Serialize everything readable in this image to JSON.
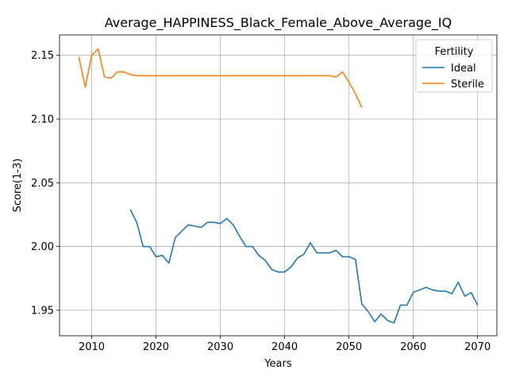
{
  "chart_data": {
    "type": "line",
    "title": "Average_HAPPINESS_Black_Female_Above_Average_IQ",
    "xlabel": "Years",
    "ylabel": "Score(1-3)",
    "xlim": [
      2005,
      2073
    ],
    "ylim": [
      1.93,
      2.166
    ],
    "x_ticks": [
      2010,
      2020,
      2030,
      2040,
      2050,
      2060,
      2070
    ],
    "y_ticks": [
      1.95,
      2.0,
      2.05,
      2.1,
      2.15
    ],
    "x_tick_labels": [
      "2010",
      "2020",
      "2030",
      "2040",
      "2050",
      "2060",
      "2070"
    ],
    "y_tick_labels": [
      "1.95",
      "2.00",
      "2.05",
      "2.10",
      "2.15"
    ],
    "grid": true,
    "legend": {
      "title": "Fertility",
      "placement": "top-right"
    },
    "series": [
      {
        "name": "Ideal",
        "color": "#1f77b4",
        "points": [
          [
            2016,
            2.029
          ],
          [
            2017,
            2.019
          ],
          [
            2018,
            2.0
          ],
          [
            2019,
            2.0
          ],
          [
            2020,
            1.992
          ],
          [
            2021,
            1.993
          ],
          [
            2022,
            1.987
          ],
          [
            2023,
            2.007
          ],
          [
            2024,
            2.012
          ],
          [
            2025,
            2.017
          ],
          [
            2026,
            2.016
          ],
          [
            2027,
            2.015
          ],
          [
            2028,
            2.019
          ],
          [
            2029,
            2.019
          ],
          [
            2030,
            2.018
          ],
          [
            2031,
            2.022
          ],
          [
            2032,
            2.017
          ],
          [
            2033,
            2.008
          ],
          [
            2034,
            2.0
          ],
          [
            2035,
            2.0
          ],
          [
            2036,
            1.993
          ],
          [
            2037,
            1.989
          ],
          [
            2038,
            1.982
          ],
          [
            2039,
            1.98
          ],
          [
            2040,
            1.98
          ],
          [
            2041,
            1.984
          ],
          [
            2042,
            1.991
          ],
          [
            2043,
            1.994
          ],
          [
            2044,
            2.003
          ],
          [
            2045,
            1.995
          ],
          [
            2046,
            1.995
          ],
          [
            2047,
            1.995
          ],
          [
            2048,
            1.997
          ],
          [
            2049,
            1.992
          ],
          [
            2050,
            1.992
          ],
          [
            2051,
            1.99
          ],
          [
            2052,
            1.955
          ],
          [
            2053,
            1.949
          ],
          [
            2054,
            1.941
          ],
          [
            2055,
            1.947
          ],
          [
            2056,
            1.942
          ],
          [
            2057,
            1.94
          ],
          [
            2058,
            1.954
          ],
          [
            2059,
            1.954
          ],
          [
            2060,
            1.964
          ],
          [
            2061,
            1.966
          ],
          [
            2062,
            1.968
          ],
          [
            2063,
            1.966
          ],
          [
            2064,
            1.965
          ],
          [
            2065,
            1.965
          ],
          [
            2066,
            1.963
          ],
          [
            2067,
            1.972
          ],
          [
            2068,
            1.961
          ],
          [
            2069,
            1.964
          ],
          [
            2070,
            1.954
          ]
        ]
      },
      {
        "name": "Sterile",
        "color": "#ff7f0e",
        "points": [
          [
            2008,
            2.149
          ],
          [
            2009,
            2.125
          ],
          [
            2010,
            2.15
          ],
          [
            2011,
            2.155
          ],
          [
            2012,
            2.133
          ],
          [
            2013,
            2.132
          ],
          [
            2014,
            2.137
          ],
          [
            2015,
            2.137
          ],
          [
            2016,
            2.135
          ],
          [
            2017,
            2.134
          ],
          [
            2018,
            2.134
          ],
          [
            2019,
            2.134
          ],
          [
            2020,
            2.134
          ],
          [
            2025,
            2.134
          ],
          [
            2030,
            2.134
          ],
          [
            2035,
            2.134
          ],
          [
            2040,
            2.134
          ],
          [
            2045,
            2.134
          ],
          [
            2046,
            2.134
          ],
          [
            2047,
            2.134
          ],
          [
            2048,
            2.133
          ],
          [
            2049,
            2.137
          ],
          [
            2050,
            2.129
          ],
          [
            2051,
            2.12
          ],
          [
            2052,
            2.109
          ]
        ]
      }
    ]
  }
}
